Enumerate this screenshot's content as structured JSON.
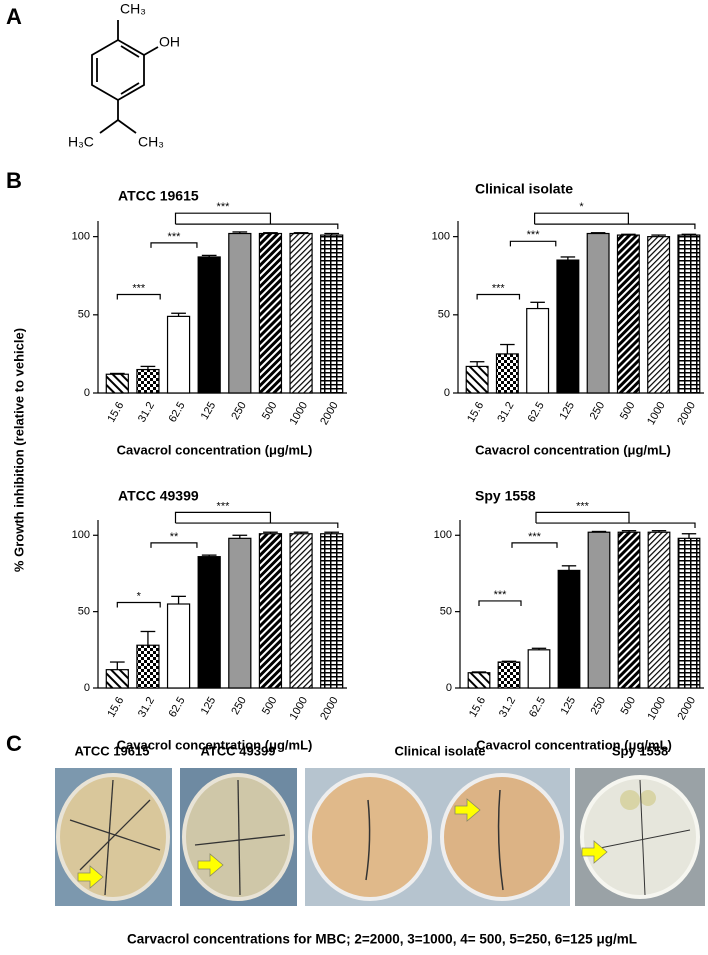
{
  "panel_labels": [
    "A",
    "B",
    "C"
  ],
  "structure": {
    "labels": [
      "CH₃",
      "OH",
      "H₃C",
      "CH₃"
    ]
  },
  "shared_ylabel": "% Growth inhibition (relative to vehicle)",
  "chart_data": [
    {
      "type": "bar",
      "title": "ATCC 19615",
      "xlabel": "Cavacrol concentration (μg/mL)",
      "categories": [
        "15.6",
        "31.2",
        "62.5",
        "125",
        "250",
        "500",
        "1000",
        "2000"
      ],
      "values": [
        12,
        15,
        49,
        87,
        102,
        102,
        102,
        101
      ],
      "errors": [
        0.5,
        2,
        2,
        1,
        1,
        0.5,
        0.5,
        1
      ],
      "ylim": [
        0,
        110
      ],
      "yticks": [
        0,
        50,
        100
      ],
      "annotations": [
        "***",
        "***",
        "***"
      ]
    },
    {
      "type": "bar",
      "title": "Clinical isolate",
      "xlabel": "Cavacrol concentration (μg/mL)",
      "categories": [
        "15.6",
        "31.2",
        "62.5",
        "125",
        "250",
        "500",
        "1000",
        "2000"
      ],
      "values": [
        17,
        25,
        54,
        85,
        102,
        101,
        100,
        101
      ],
      "errors": [
        3,
        6,
        4,
        2,
        0.5,
        0.5,
        1,
        0.5
      ],
      "ylim": [
        0,
        110
      ],
      "yticks": [
        0,
        50,
        100
      ],
      "annotations": [
        "***",
        "***",
        "*"
      ]
    },
    {
      "type": "bar",
      "title": "ATCC 49399",
      "xlabel": "Cavacrol concentration (μg/mL)",
      "categories": [
        "15.6",
        "31.2",
        "62.5",
        "125",
        "250",
        "500",
        "1000",
        "2000"
      ],
      "values": [
        12,
        28,
        55,
        86,
        98,
        101,
        101,
        101
      ],
      "errors": [
        5,
        9,
        5,
        1,
        2,
        1,
        1,
        1
      ],
      "ylim": [
        0,
        110
      ],
      "yticks": [
        0,
        50,
        100
      ],
      "annotations": [
        "*",
        "**",
        "***"
      ]
    },
    {
      "type": "bar",
      "title": "Spy 1558",
      "xlabel": "Cavacrol concentration (μg/mL)",
      "categories": [
        "15.6",
        "31.2",
        "62.5",
        "125",
        "250",
        "500",
        "1000",
        "2000"
      ],
      "values": [
        10,
        17,
        25,
        77,
        102,
        102,
        102,
        98
      ],
      "errors": [
        0.5,
        0.5,
        1,
        3,
        0.5,
        1,
        1,
        3
      ],
      "ylim": [
        0,
        110
      ],
      "yticks": [
        0,
        50,
        100
      ],
      "annotations": [
        "***",
        "***",
        "***"
      ]
    }
  ],
  "photos": {
    "labels": [
      "ATCC 19615",
      "ATCC 49399",
      "Clinical isolate",
      "Spy 1558"
    ],
    "caption": "Carvacrol concentrations for MBC; 2=2000, 3=1000, 4= 500, 5=250, 6=125 μg/mL"
  }
}
